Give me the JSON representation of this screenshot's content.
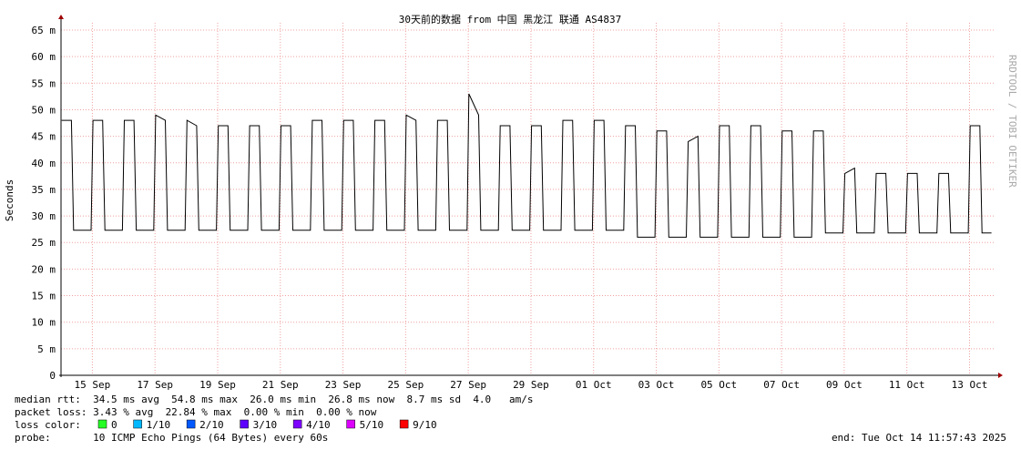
{
  "chart_data": {
    "type": "line",
    "title": "30天前的数据 from 中国 黑龙江 联通 AS4837",
    "y_label": "Seconds",
    "side_text": "RRDTOOL / TOBI OETIKER",
    "x": [
      0.02,
      0.33,
      0.4,
      0.96,
      1.02,
      1.33,
      1.4,
      1.96,
      2.02,
      2.33,
      2.4,
      2.96,
      3.02,
      3.33,
      3.4,
      3.96,
      4.02,
      4.33,
      4.4,
      4.96,
      5.02,
      5.33,
      5.4,
      5.96,
      6.02,
      6.33,
      6.4,
      6.96,
      7.02,
      7.33,
      7.4,
      7.96,
      8.02,
      8.33,
      8.4,
      8.96,
      9.02,
      9.33,
      9.4,
      9.96,
      10.02,
      10.33,
      10.4,
      10.96,
      11.02,
      11.33,
      11.4,
      11.96,
      12.02,
      12.33,
      12.4,
      12.96,
      13.02,
      13.33,
      13.4,
      13.96,
      14.02,
      14.33,
      14.4,
      14.96,
      15.02,
      15.33,
      15.4,
      15.96,
      16.02,
      16.33,
      16.4,
      16.96,
      17.02,
      17.33,
      17.4,
      17.96,
      18.02,
      18.33,
      18.4,
      18.96,
      19.02,
      19.33,
      19.4,
      19.96,
      20.02,
      20.33,
      20.4,
      20.96,
      21.02,
      21.33,
      21.4,
      21.96,
      22.02,
      22.33,
      22.4,
      22.96,
      23.02,
      23.33,
      23.4,
      23.96,
      24.02,
      24.33,
      24.4,
      24.96,
      25.02,
      25.33,
      25.4,
      25.96,
      26.02,
      26.33,
      26.4,
      26.96,
      27.02,
      27.33,
      27.4,
      27.96,
      28.02,
      28.33,
      28.4,
      28.96,
      29.02,
      29.33,
      29.4,
      29.7
    ],
    "values": [
      48,
      48,
      27.3,
      27.3,
      48,
      48,
      27.3,
      27.3,
      48,
      48,
      27.3,
      27.3,
      49,
      48,
      27.3,
      27.3,
      48,
      47,
      27.3,
      27.3,
      47,
      47,
      27.3,
      27.3,
      47,
      47,
      27.3,
      27.3,
      47,
      47,
      27.3,
      27.3,
      48,
      48,
      27.3,
      27.3,
      48,
      48,
      27.3,
      27.3,
      48,
      48,
      27.3,
      27.3,
      49,
      48,
      27.3,
      27.3,
      48,
      48,
      27.3,
      27.3,
      53,
      49,
      27.3,
      27.3,
      47,
      47,
      27.3,
      27.3,
      47,
      47,
      27.3,
      27.3,
      48,
      48,
      27.3,
      27.3,
      48,
      48,
      27.3,
      27.3,
      47,
      47,
      26,
      26,
      46,
      46,
      26,
      26,
      44,
      45,
      26,
      26,
      47,
      47,
      26,
      26,
      47,
      47,
      26,
      26,
      46,
      46,
      26,
      26,
      46,
      46,
      26.8,
      26.8,
      38,
      39,
      26.8,
      26.8,
      38,
      38,
      26.8,
      26.8,
      38,
      38,
      26.8,
      26.8,
      38,
      38,
      26.8,
      26.8,
      47,
      47,
      26.8,
      26.8
    ],
    "color": "#000000",
    "xlim": [
      0,
      29.8
    ],
    "xticks": [
      {
        "value": 1,
        "label": "15 Sep"
      },
      {
        "value": 3,
        "label": "17 Sep"
      },
      {
        "value": 5,
        "label": "19 Sep"
      },
      {
        "value": 7,
        "label": "21 Sep"
      },
      {
        "value": 9,
        "label": "23 Sep"
      },
      {
        "value": 11,
        "label": "25 Sep"
      },
      {
        "value": 13,
        "label": "27 Sep"
      },
      {
        "value": 15,
        "label": "29 Sep"
      },
      {
        "value": 17,
        "label": "01 Oct"
      },
      {
        "value": 19,
        "label": "03 Oct"
      },
      {
        "value": 21,
        "label": "05 Oct"
      },
      {
        "value": 23,
        "label": "07 Oct"
      },
      {
        "value": 25,
        "label": "09 Oct"
      },
      {
        "value": 27,
        "label": "11 Oct"
      },
      {
        "value": 29,
        "label": "13 Oct"
      }
    ],
    "ylim": [
      0,
      65
    ],
    "yticks": [
      0,
      {
        "value": 5,
        "label": "5 m"
      },
      {
        "value": 10,
        "label": "10 m"
      },
      {
        "value": 15,
        "label": "15 m"
      },
      {
        "value": 20,
        "label": "20 m"
      },
      {
        "value": 25,
        "label": "25 m"
      },
      {
        "value": 30,
        "label": "30 m"
      },
      {
        "value": 35,
        "label": "35 m"
      },
      {
        "value": 40,
        "label": "40 m"
      },
      {
        "value": 45,
        "label": "45 m"
      },
      {
        "value": 50,
        "label": "50 m"
      },
      {
        "value": 55,
        "label": "55 m"
      },
      {
        "value": 60,
        "label": "60 m"
      },
      {
        "value": 65,
        "label": "65 m"
      }
    ],
    "grid": true,
    "stats": [
      "median rtt:  34.5 ms avg  54.8 ms max  26.0 ms min  26.8 ms now  8.7 ms sd  4.0   am/s",
      "packet loss: 3.43 % avg  22.84 % max  0.00 % min  0.00 % now"
    ],
    "loss_title": "loss color:",
    "loss_colors": [
      {
        "label": "0",
        "color": "#26ff26"
      },
      {
        "label": "1/10",
        "color": "#00b8ff"
      },
      {
        "label": "2/10",
        "color": "#0059ff"
      },
      {
        "label": "3/10",
        "color": "#5e00ff"
      },
      {
        "label": "4/10",
        "color": "#7e00ff"
      },
      {
        "label": "5/10",
        "color": "#dd00ff"
      },
      {
        "label": "9/10",
        "color": "#ff0000"
      }
    ],
    "probe": "probe:       10 ICMP Echo Pings (64 Bytes) every 60s",
    "end": "end: Tue Oct 14 11:57:43 2025"
  }
}
